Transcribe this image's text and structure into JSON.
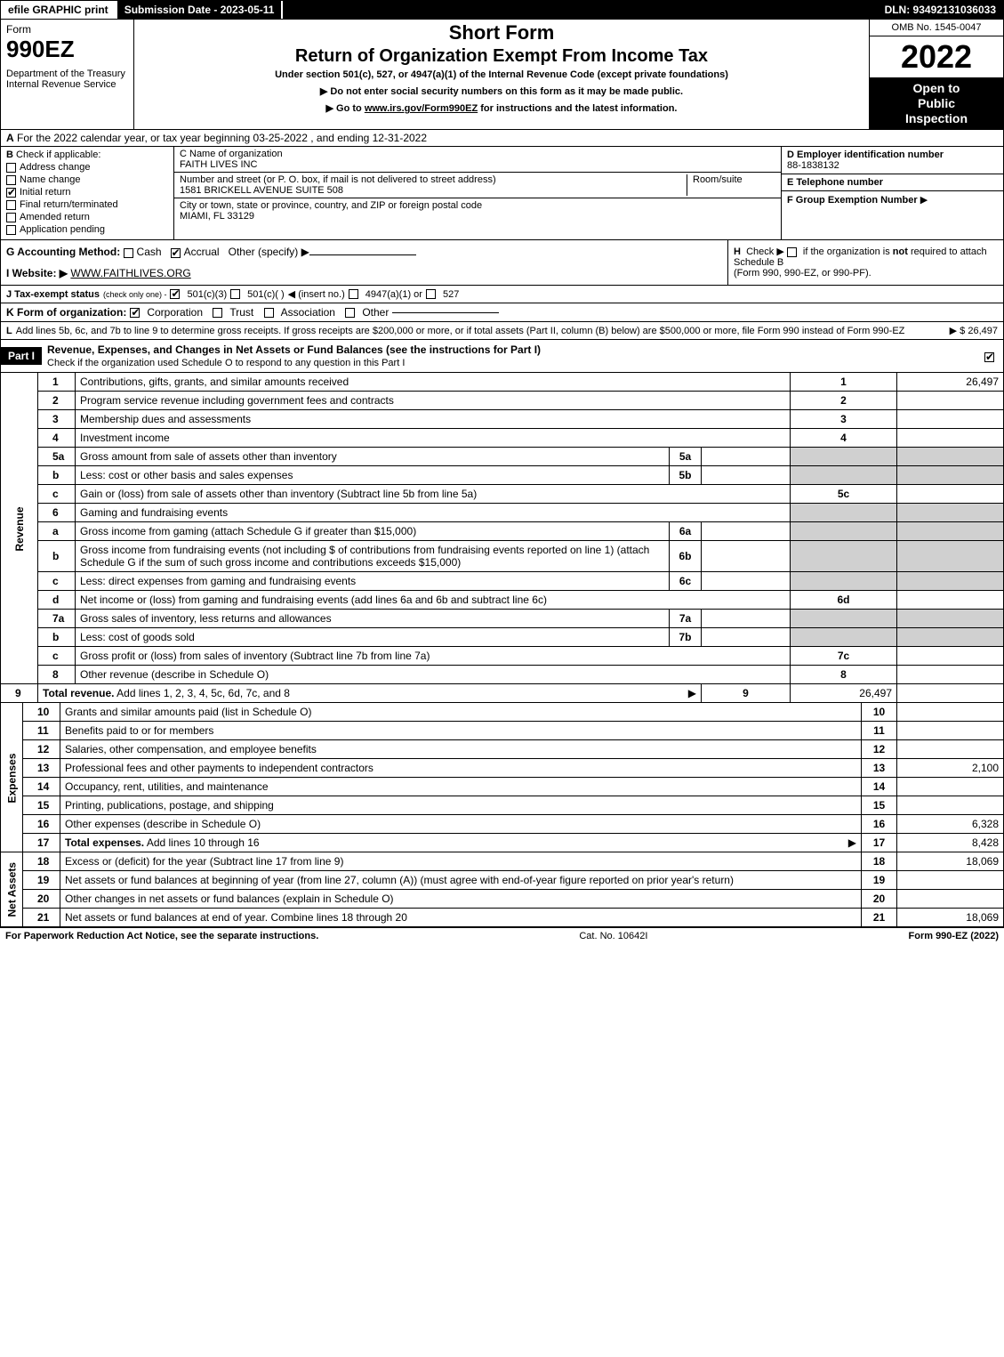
{
  "colors": {
    "black": "#000000",
    "white": "#ffffff",
    "grey": "#d0d0d0"
  },
  "topbar": {
    "efile": "efile GRAPHIC print",
    "submission": "Submission Date - 2023-05-11",
    "dln": "DLN: 93492131036033"
  },
  "header": {
    "form_word": "Form",
    "form_num": "990EZ",
    "dept1": "Department of the Treasury",
    "dept2": "Internal Revenue Service",
    "title1": "Short Form",
    "title2": "Return of Organization Exempt From Income Tax",
    "subtitle": "Under section 501(c), 527, or 4947(a)(1) of the Internal Revenue Code (except private foundations)",
    "note1": "▶ Do not enter social security numbers on this form as it may be made public.",
    "note2_pre": "▶ Go to ",
    "note2_link": "www.irs.gov/Form990EZ",
    "note2_post": " for instructions and the latest information.",
    "omb": "OMB No. 1545-0047",
    "year": "2022",
    "inspect1": "Open to",
    "inspect2": "Public",
    "inspect3": "Inspection"
  },
  "rowA": {
    "label": "A",
    "text": "For the 2022 calendar year, or tax year beginning 03-25-2022 , and ending 12-31-2022"
  },
  "boxB": {
    "label": "B",
    "heading": "Check if applicable:",
    "items": [
      {
        "label": "Address change",
        "checked": false
      },
      {
        "label": "Name change",
        "checked": false
      },
      {
        "label": "Initial return",
        "checked": true
      },
      {
        "label": "Final return/terminated",
        "checked": false
      },
      {
        "label": "Amended return",
        "checked": false
      },
      {
        "label": "Application pending",
        "checked": false
      }
    ]
  },
  "boxC": {
    "c_label": "C Name of organization",
    "c_value": "FAITH LIVES INC",
    "addr_label": "Number and street (or P. O. box, if mail is not delivered to street address)",
    "addr_value": "1581 BRICKELL AVENUE SUITE 508",
    "room_label": "Room/suite",
    "city_label": "City or town, state or province, country, and ZIP or foreign postal code",
    "city_value": "MIAMI, FL  33129"
  },
  "boxRight": {
    "d_label": "D Employer identification number",
    "d_value": "88-1838132",
    "e_label": "E Telephone number",
    "e_value": "",
    "f_label": "F Group Exemption Number",
    "f_arrow": "▶"
  },
  "lineG": {
    "label": "G Accounting Method:",
    "cash": "Cash",
    "accrual": "Accrual",
    "other": "Other (specify) ▶"
  },
  "lineH": {
    "label": "H",
    "text1": "Check ▶",
    "text2": "if the organization is ",
    "not": "not",
    "text3": " required to attach Schedule B",
    "text4": "(Form 990, 990-EZ, or 990-PF)."
  },
  "lineI": {
    "label": "I Website: ▶",
    "value": "WWW.FAITHLIVES.ORG"
  },
  "lineJ": {
    "label": "J Tax-exempt status",
    "note": "(check only one) -",
    "o1": "501(c)(3)",
    "o2": "501(c)( )",
    "insert": "◀ (insert no.)",
    "o3": "4947(a)(1) or",
    "o4": "527"
  },
  "lineK": {
    "label": "K Form of organization:",
    "o1": "Corporation",
    "o2": "Trust",
    "o3": "Association",
    "o4": "Other"
  },
  "lineL": {
    "label": "L",
    "text": "Add lines 5b, 6c, and 7b to line 9 to determine gross receipts. If gross receipts are $200,000 or more, or if total assets (Part II, column (B) below) are $500,000 or more, file Form 990 instead of Form 990-EZ",
    "amount": "▶ $ 26,497"
  },
  "part1": {
    "badge": "Part I",
    "title": "Revenue, Expenses, and Changes in Net Assets or Fund Balances (see the instructions for Part I)",
    "subtitle": "Check if the organization used Schedule O to respond to any question in this Part I"
  },
  "sections": {
    "revenue": "Revenue",
    "expenses": "Expenses",
    "netassets": "Net Assets"
  },
  "rows": [
    {
      "n": "1",
      "desc": "Contributions, gifts, grants, and similar amounts received",
      "r": "1",
      "amt": "26,497"
    },
    {
      "n": "2",
      "desc": "Program service revenue including government fees and contracts",
      "r": "2",
      "amt": ""
    },
    {
      "n": "3",
      "desc": "Membership dues and assessments",
      "r": "3",
      "amt": ""
    },
    {
      "n": "4",
      "desc": "Investment income",
      "r": "4",
      "amt": ""
    },
    {
      "n": "5a",
      "desc": "Gross amount from sale of assets other than inventory",
      "box": "5a",
      "mid": "",
      "grey": true
    },
    {
      "n": "b",
      "desc": "Less: cost or other basis and sales expenses",
      "box": "5b",
      "mid": "",
      "grey": true
    },
    {
      "n": "c",
      "desc": "Gain or (loss) from sale of assets other than inventory (Subtract line 5b from line 5a)",
      "r": "5c",
      "amt": ""
    },
    {
      "n": "6",
      "desc": "Gaming and fundraising events",
      "greyfull": true
    },
    {
      "n": "a",
      "desc": "Gross income from gaming (attach Schedule G if greater than $15,000)",
      "box": "6a",
      "mid": "",
      "grey": true
    },
    {
      "n": "b",
      "desc": "Gross income from fundraising events (not including $                    of contributions from fundraising events reported on line 1) (attach Schedule G if the sum of such gross income and contributions exceeds $15,000)",
      "box": "6b",
      "mid": "",
      "grey": true
    },
    {
      "n": "c",
      "desc": "Less: direct expenses from gaming and fundraising events",
      "box": "6c",
      "mid": "",
      "grey": true
    },
    {
      "n": "d",
      "desc": "Net income or (loss) from gaming and fundraising events (add lines 6a and 6b and subtract line 6c)",
      "r": "6d",
      "amt": ""
    },
    {
      "n": "7a",
      "desc": "Gross sales of inventory, less returns and allowances",
      "box": "7a",
      "mid": "",
      "grey": true
    },
    {
      "n": "b",
      "desc": "Less: cost of goods sold",
      "box": "7b",
      "mid": "",
      "grey": true
    },
    {
      "n": "c",
      "desc": "Gross profit or (loss) from sales of inventory (Subtract line 7b from line 7a)",
      "r": "7c",
      "amt": ""
    },
    {
      "n": "8",
      "desc": "Other revenue (describe in Schedule O)",
      "r": "8",
      "amt": ""
    },
    {
      "n": "9",
      "desc": "Total revenue. Add lines 1, 2, 3, 4, 5c, 6d, 7c, and 8",
      "bold": true,
      "arrow": true,
      "r": "9",
      "amt": "26,497"
    }
  ],
  "rows_exp": [
    {
      "n": "10",
      "desc": "Grants and similar amounts paid (list in Schedule O)",
      "r": "10",
      "amt": ""
    },
    {
      "n": "11",
      "desc": "Benefits paid to or for members",
      "r": "11",
      "amt": ""
    },
    {
      "n": "12",
      "desc": "Salaries, other compensation, and employee benefits",
      "r": "12",
      "amt": ""
    },
    {
      "n": "13",
      "desc": "Professional fees and other payments to independent contractors",
      "r": "13",
      "amt": "2,100"
    },
    {
      "n": "14",
      "desc": "Occupancy, rent, utilities, and maintenance",
      "r": "14",
      "amt": ""
    },
    {
      "n": "15",
      "desc": "Printing, publications, postage, and shipping",
      "r": "15",
      "amt": ""
    },
    {
      "n": "16",
      "desc": "Other expenses (describe in Schedule O)",
      "r": "16",
      "amt": "6,328"
    },
    {
      "n": "17",
      "desc": "Total expenses. Add lines 10 through 16",
      "bold": true,
      "arrow": true,
      "r": "17",
      "amt": "8,428"
    }
  ],
  "rows_net": [
    {
      "n": "18",
      "desc": "Excess or (deficit) for the year (Subtract line 17 from line 9)",
      "r": "18",
      "amt": "18,069"
    },
    {
      "n": "19",
      "desc": "Net assets or fund balances at beginning of year (from line 27, column (A)) (must agree with end-of-year figure reported on prior year's return)",
      "r": "19",
      "amt": ""
    },
    {
      "n": "20",
      "desc": "Other changes in net assets or fund balances (explain in Schedule O)",
      "r": "20",
      "amt": ""
    },
    {
      "n": "21",
      "desc": "Net assets or fund balances at end of year. Combine lines 18 through 20",
      "r": "21",
      "amt": "18,069"
    }
  ],
  "footer": {
    "left": "For Paperwork Reduction Act Notice, see the separate instructions.",
    "mid": "Cat. No. 10642I",
    "right_pre": "Form ",
    "right_bold": "990-EZ",
    "right_post": " (2022)"
  }
}
